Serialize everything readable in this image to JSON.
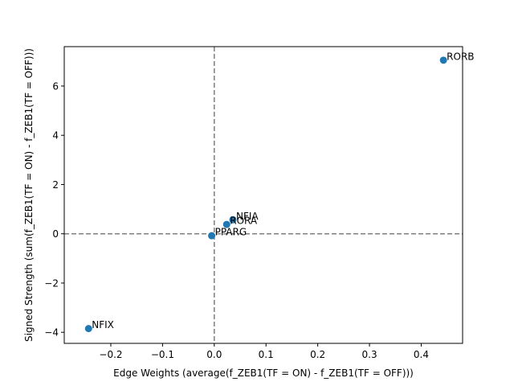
{
  "chart_data": {
    "type": "scatter",
    "title": "",
    "xlabel": "Edge Weights (average(f_ZEB1(TF = ON) - f_ZEB1(TF = OFF)))",
    "ylabel": "Signed Strength (sum(f_ZEB1(TF = ON) - f_ZEB1(TF = OFF)))",
    "xlim": [
      -0.29,
      0.48
    ],
    "ylim": [
      -4.45,
      7.6
    ],
    "xticks": [
      -0.2,
      -0.1,
      0.0,
      0.1,
      0.2,
      0.3,
      0.4
    ],
    "xtick_labels": [
      "−0.2",
      "−0.1",
      "0.0",
      "0.1",
      "0.2",
      "0.3",
      "0.4"
    ],
    "yticks": [
      -4,
      -2,
      0,
      2,
      4,
      6
    ],
    "ytick_labels": [
      "−4",
      "−2",
      "0",
      "2",
      "4",
      "6"
    ],
    "grid": false,
    "reference_lines": {
      "x": 0,
      "y": 0,
      "style": "dashed",
      "color": "#808080"
    },
    "marker_color": "#1f77b4",
    "points": [
      {
        "label": "RORB",
        "x": 0.443,
        "y": 7.05
      },
      {
        "label": "NFIA",
        "x": 0.036,
        "y": 0.57
      },
      {
        "label": "RORA",
        "x": 0.024,
        "y": 0.38
      },
      {
        "label": "PPARG",
        "x": -0.005,
        "y": -0.08
      },
      {
        "label": "NFIX",
        "x": -0.243,
        "y": -3.85
      }
    ]
  }
}
